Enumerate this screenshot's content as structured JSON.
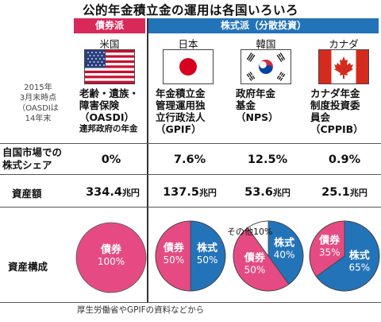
{
  "title": "公的年金積立金の運用は各国いろいろ",
  "headers": {
    "left": "債券派",
    "right": "株式派（分散投資）"
  },
  "side_note": [
    "2015年",
    "3月末時点",
    "（OASDIは",
    "14年末"
  ],
  "countries": [
    {
      "name": "米国",
      "flag_icon": "usa-flag-icon",
      "agency_lines": [
        "老齢・遺族・",
        "障害保険",
        "（OASDI）"
      ],
      "agency_extra": "連邦政府の年金",
      "share": "0%",
      "assets_number": "334.4",
      "assets_unit": "兆円",
      "composition": [
        {
          "label": "債券",
          "pct": "100%",
          "value": 100,
          "color": "#e54b82"
        }
      ]
    },
    {
      "name": "日本",
      "flag_icon": "japan-flag-icon",
      "agency_lines": [
        "年金積立金",
        "管理運用独",
        "立行政法人",
        "（GPIF）"
      ],
      "share": "7.6%",
      "assets_number": "137.5",
      "assets_unit": "兆円",
      "composition": [
        {
          "label": "債券",
          "pct": "50%",
          "value": 50,
          "color": "#e54b82"
        },
        {
          "label": "株式",
          "pct": "50%",
          "value": 50,
          "color": "#2373b9"
        }
      ]
    },
    {
      "name": "韓国",
      "flag_icon": "korea-flag-icon",
      "agency_lines": [
        "政府年金",
        "基金",
        "（NPS）"
      ],
      "share": "12.5%",
      "assets_number": "53.6",
      "assets_unit": "兆円",
      "composition": [
        {
          "label": "債券",
          "pct": "50%",
          "value": 50,
          "color": "#e54b82"
        },
        {
          "label": "株式",
          "pct": "40%",
          "value": 40,
          "color": "#2373b9"
        },
        {
          "label": "その他",
          "pct": "10%",
          "value": 10,
          "color": "#ffffff"
        }
      ]
    },
    {
      "name": "カナダ",
      "flag_icon": "canada-flag-icon",
      "agency_lines": [
        "カナダ年金",
        "制度投資委",
        "員会",
        "（CPPIB）"
      ],
      "share": "0.9%",
      "assets_number": "25.1",
      "assets_unit": "兆円",
      "composition": [
        {
          "label": "債券",
          "pct": "35%",
          "value": 35,
          "color": "#e54b82"
        },
        {
          "label": "株式",
          "pct": "65%",
          "value": 65,
          "color": "#2373b9"
        }
      ]
    }
  ],
  "row_labels": {
    "share": [
      "自国市場での",
      "株式シェア"
    ],
    "assets": "資産額",
    "composition": "資産構成"
  },
  "other_label": "その他10%",
  "footer": "厚生労働省やGPIFの資料などから"
}
